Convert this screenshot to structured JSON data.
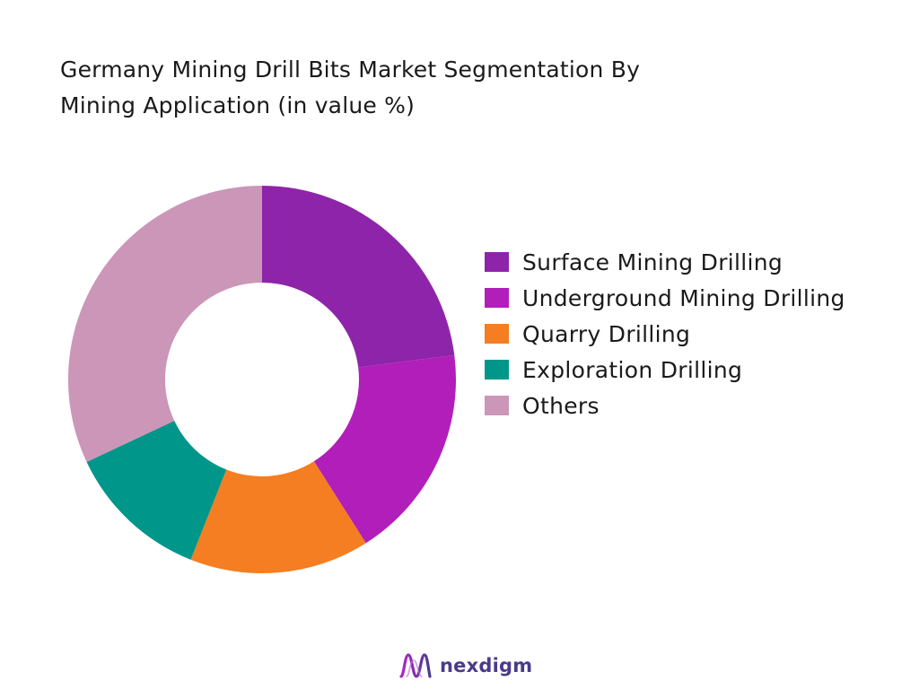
{
  "title": {
    "line1": "Germany Mining Drill Bits Market Segmentation By",
    "line2": "Mining Application (in value %)"
  },
  "chart_data": {
    "type": "pie",
    "variant": "donut",
    "start_angle_deg": 0,
    "direction": "clockwise",
    "categories": [
      "Surface Mining Drilling",
      "Underground Mining Drilling",
      "Quarry Drilling",
      "Exploration Drilling",
      "Others"
    ],
    "values": [
      23,
      18,
      15,
      12,
      32
    ],
    "colors": [
      "#8e24aa",
      "#b11eba",
      "#f47e21",
      "#00968a",
      "#cb96b7"
    ],
    "legend_position": "right",
    "data_labels": false
  },
  "brand": {
    "name": "nexdigm",
    "icon": "nexdigm-logo-icon",
    "color": "#4a3a8c"
  }
}
